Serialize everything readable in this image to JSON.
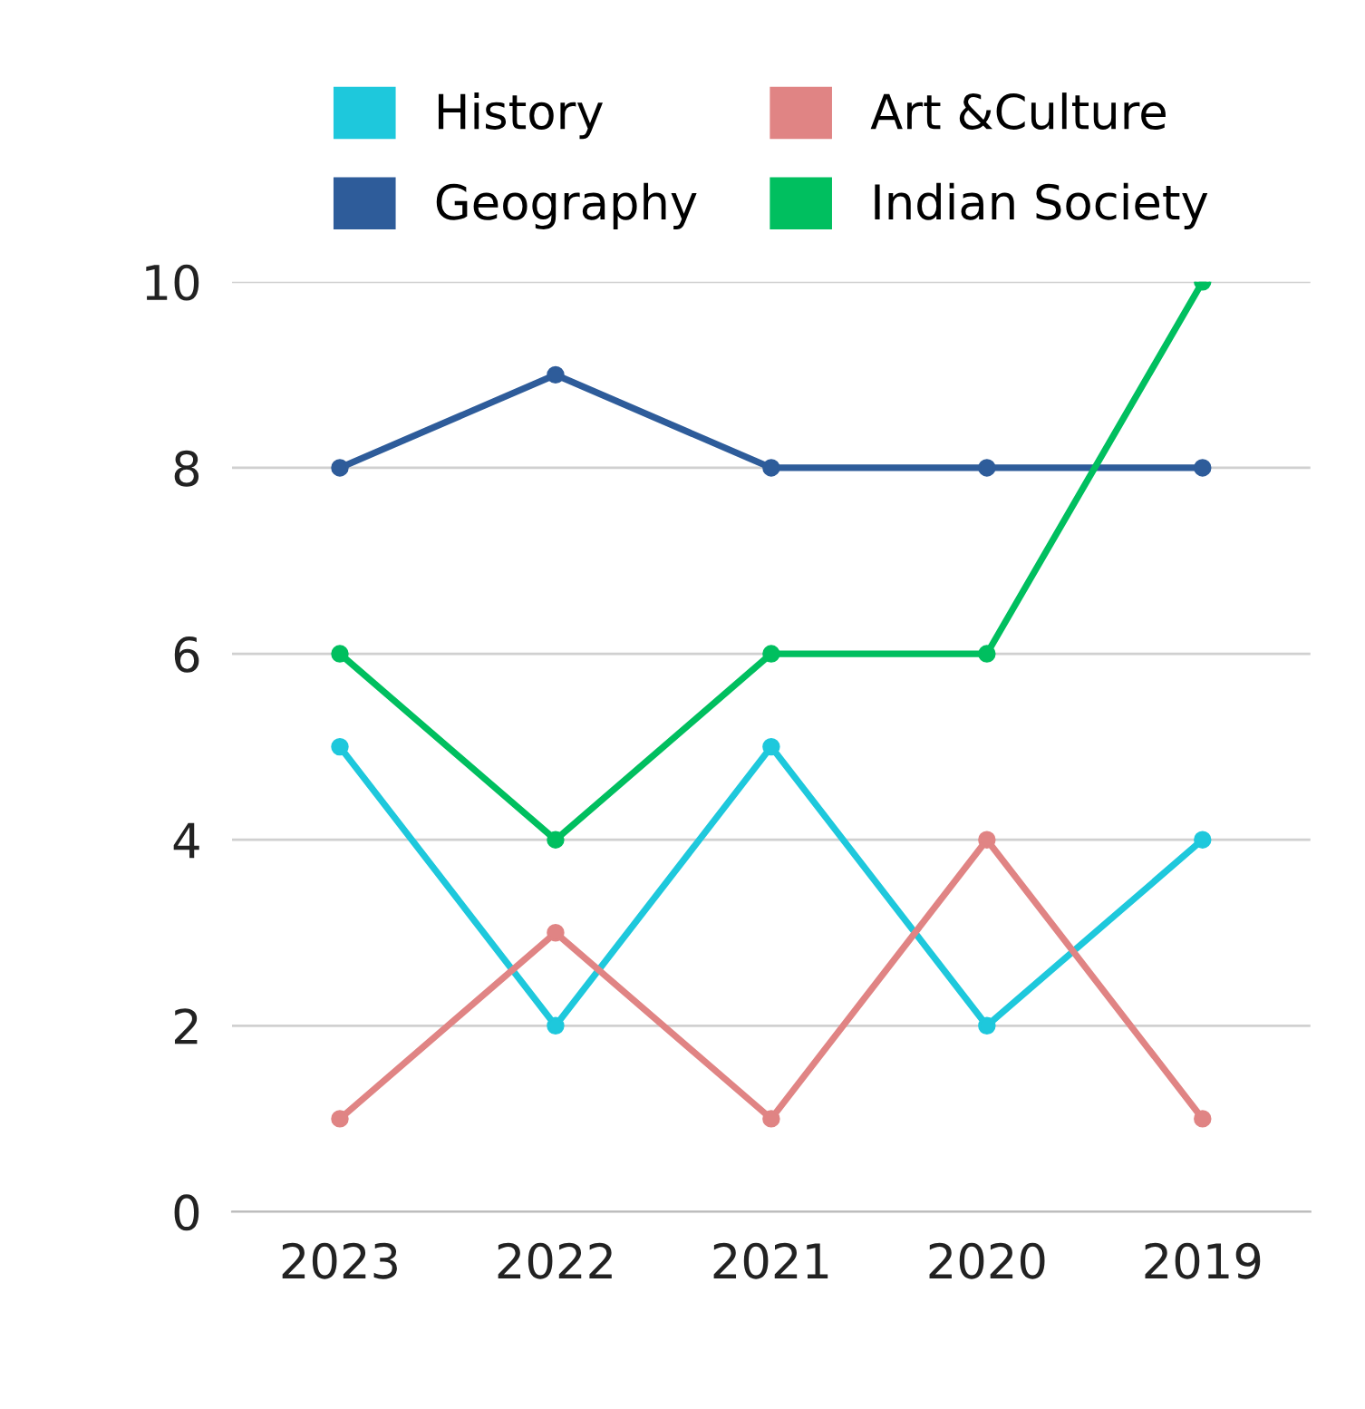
{
  "chart_data": {
    "type": "line",
    "categories": [
      "2023",
      "2022",
      "2021",
      "2020",
      "2019"
    ],
    "series": [
      {
        "name": "History",
        "color": "#1ec8dc",
        "values": [
          5,
          2,
          5,
          2,
          4
        ]
      },
      {
        "name": "Art &Culture",
        "color": "#e08484",
        "values": [
          1,
          3,
          1,
          4,
          1
        ]
      },
      {
        "name": "Geography",
        "color": "#2e5c9a",
        "values": [
          8,
          9,
          8,
          8,
          8
        ]
      },
      {
        "name": "Indian Society",
        "color": "#00bf5f",
        "values": [
          6,
          4,
          6,
          6,
          10
        ]
      }
    ],
    "ylim": [
      0,
      10
    ],
    "yticks": [
      0,
      2,
      4,
      6,
      8,
      10
    ],
    "grid": "y",
    "legend": "top",
    "marker": "circle",
    "line_style": "solid"
  }
}
